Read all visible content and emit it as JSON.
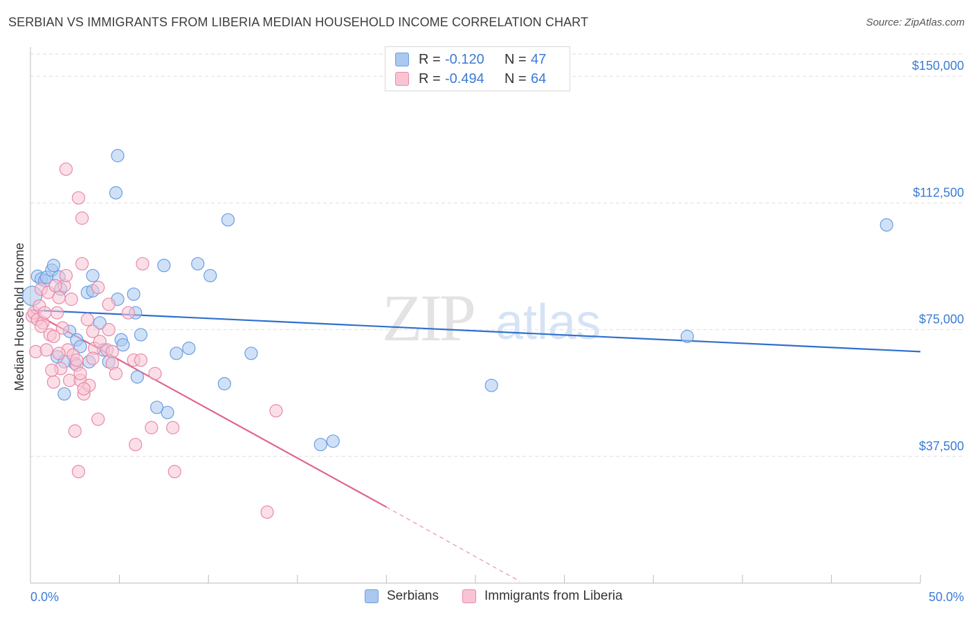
{
  "header": {
    "title": "SERBIAN VS IMMIGRANTS FROM LIBERIA MEDIAN HOUSEHOLD INCOME CORRELATION CHART",
    "source": "Source: ZipAtlas.com"
  },
  "watermark": {
    "zip": "ZIP",
    "atlas": "atlas"
  },
  "legend": {
    "rows": [
      {
        "r_label": "R = ",
        "r_value": "-0.120",
        "n_label": "N = ",
        "n_value": "47",
        "color": "#aac8f0",
        "border": "#6a9ee0"
      },
      {
        "r_label": "R = ",
        "r_value": "-0.494",
        "n_label": "N = ",
        "n_value": "64",
        "color": "#f8c4d4",
        "border": "#e889a8"
      }
    ]
  },
  "bottom_legend": {
    "items": [
      {
        "label": "Serbians",
        "color": "#aac8f0",
        "border": "#6a9ee0"
      },
      {
        "label": "Immigrants from Liberia",
        "color": "#f8c4d4",
        "border": "#e889a8"
      }
    ]
  },
  "chart_data": {
    "type": "scatter",
    "title": "SERBIAN VS IMMIGRANTS FROM LIBERIA MEDIAN HOUSEHOLD INCOME CORRELATION CHART",
    "xlabel": "",
    "ylabel": "Median Household Income",
    "xlim": [
      0,
      50
    ],
    "ylim": [
      0,
      157000
    ],
    "x_tick_labels": [
      {
        "value": 0,
        "label": "0.0%"
      },
      {
        "value": 50,
        "label": "50.0%"
      }
    ],
    "y_ticks": [
      {
        "value": 37500,
        "label": "$37,500"
      },
      {
        "value": 75000,
        "label": "$75,000"
      },
      {
        "value": 112500,
        "label": "$112,500"
      },
      {
        "value": 150000,
        "label": "$150,000"
      }
    ],
    "grid": true,
    "legend_position": "top-center",
    "series": [
      {
        "name": "Serbians",
        "color": "#6a9ee0",
        "fill": "#aac8f0",
        "trend": {
          "x": [
            0,
            50
          ],
          "y": [
            80800,
            68500
          ],
          "color": "#2e6fce"
        },
        "points": [
          [
            0.1,
            85000,
            14
          ],
          [
            0.4,
            90800,
            9
          ],
          [
            0.6,
            90000,
            9
          ],
          [
            0.8,
            89500,
            9
          ],
          [
            0.9,
            90500,
            9
          ],
          [
            1.2,
            92600,
            9
          ],
          [
            1.3,
            94000,
            9
          ],
          [
            1.6,
            90600,
            9
          ],
          [
            1.7,
            87000,
            9
          ],
          [
            1.5,
            67000,
            9
          ],
          [
            1.9,
            56000,
            9
          ],
          [
            2.2,
            74500,
            9
          ],
          [
            2.6,
            72000,
            9
          ],
          [
            2.8,
            70000,
            9
          ],
          [
            3.2,
            86000,
            9
          ],
          [
            3.5,
            86500,
            9
          ],
          [
            3.3,
            65500,
            9
          ],
          [
            3.9,
            77000,
            9
          ],
          [
            4.1,
            69000,
            9
          ],
          [
            4.4,
            65500,
            9
          ],
          [
            5.1,
            72000,
            9
          ],
          [
            5.2,
            70500,
            9
          ],
          [
            4.9,
            84000,
            9
          ],
          [
            5.9,
            80000,
            9
          ],
          [
            6.2,
            73500,
            9
          ],
          [
            5.8,
            85500,
            9
          ],
          [
            6.0,
            61000,
            9
          ],
          [
            7.5,
            94000,
            9
          ],
          [
            8.2,
            68000,
            9
          ],
          [
            8.9,
            69500,
            9
          ],
          [
            9.4,
            94500,
            9
          ],
          [
            10.1,
            91000,
            9
          ],
          [
            10.9,
            59000,
            9
          ],
          [
            11.1,
            107500,
            9
          ],
          [
            12.4,
            68000,
            9
          ],
          [
            4.9,
            126500,
            9
          ],
          [
            4.8,
            115500,
            9
          ],
          [
            7.7,
            50500,
            9
          ],
          [
            7.1,
            52000,
            9
          ],
          [
            16.3,
            41000,
            9
          ],
          [
            17.0,
            42000,
            9
          ],
          [
            25.9,
            58500,
            9
          ],
          [
            36.9,
            73000,
            9
          ],
          [
            48.1,
            106000,
            9
          ],
          [
            3.5,
            91000,
            9
          ],
          [
            2.5,
            65000,
            9
          ],
          [
            1.9,
            65500,
            9
          ]
        ]
      },
      {
        "name": "Immigrants from Liberia",
        "color": "#e889a8",
        "fill": "#f8c4d4",
        "trend": {
          "x": [
            0,
            20
          ],
          "y": [
            80500,
            22500
          ],
          "color": "#e0648f"
        },
        "trend_dashed": {
          "x": [
            20,
            27.5
          ],
          "y": [
            22500,
            500
          ]
        },
        "points": [
          [
            0.1,
            79000,
            9
          ],
          [
            0.2,
            80000,
            9
          ],
          [
            0.4,
            78000,
            9
          ],
          [
            0.5,
            82000,
            9
          ],
          [
            0.7,
            77000,
            9
          ],
          [
            0.3,
            68500,
            9
          ],
          [
            0.9,
            69000,
            9
          ],
          [
            1.1,
            73500,
            9
          ],
          [
            1.3,
            73000,
            9
          ],
          [
            1.5,
            80000,
            9
          ],
          [
            0.8,
            80000,
            9
          ],
          [
            1.6,
            84500,
            9
          ],
          [
            1.9,
            88000,
            9
          ],
          [
            2.0,
            91000,
            9
          ],
          [
            1.8,
            75500,
            9
          ],
          [
            2.1,
            69000,
            9
          ],
          [
            2.4,
            67500,
            9
          ],
          [
            2.6,
            64500,
            9
          ],
          [
            2.2,
            60000,
            9
          ],
          [
            2.8,
            60000,
            9
          ],
          [
            1.3,
            59500,
            9
          ],
          [
            1.7,
            63500,
            9
          ],
          [
            3.0,
            56000,
            9
          ],
          [
            3.3,
            58500,
            9
          ],
          [
            3.5,
            74500,
            9
          ],
          [
            3.6,
            69500,
            9
          ],
          [
            3.9,
            71500,
            9
          ],
          [
            4.3,
            69000,
            9
          ],
          [
            4.6,
            68500,
            9
          ],
          [
            4.4,
            75000,
            9
          ],
          [
            3.8,
            87500,
            9
          ],
          [
            4.4,
            82500,
            9
          ],
          [
            3.2,
            78000,
            9
          ],
          [
            2.9,
            94500,
            9
          ],
          [
            2.7,
            114000,
            9
          ],
          [
            2.9,
            108000,
            9
          ],
          [
            2.0,
            122500,
            9
          ],
          [
            3.8,
            48500,
            9
          ],
          [
            2.5,
            45000,
            9
          ],
          [
            2.7,
            33000,
            9
          ],
          [
            5.5,
            80000,
            9
          ],
          [
            5.8,
            66000,
            9
          ],
          [
            6.2,
            66000,
            9
          ],
          [
            6.8,
            46000,
            9
          ],
          [
            5.9,
            41000,
            9
          ],
          [
            6.3,
            94500,
            9
          ],
          [
            7.0,
            62000,
            9
          ],
          [
            8.1,
            33000,
            9
          ],
          [
            8.0,
            46000,
            9
          ],
          [
            13.8,
            51000,
            9
          ],
          [
            13.3,
            21000,
            9
          ],
          [
            0.6,
            87000,
            9
          ],
          [
            1.0,
            86000,
            9
          ],
          [
            1.4,
            88000,
            9
          ],
          [
            2.3,
            84000,
            9
          ],
          [
            2.8,
            62000,
            9
          ],
          [
            3.0,
            57500,
            9
          ],
          [
            4.6,
            65000,
            9
          ],
          [
            4.8,
            62000,
            9
          ],
          [
            1.2,
            63000,
            9
          ],
          [
            2.6,
            66000,
            9
          ],
          [
            3.5,
            66500,
            9
          ],
          [
            1.6,
            68000,
            9
          ],
          [
            0.6,
            76000,
            9
          ]
        ]
      }
    ]
  }
}
